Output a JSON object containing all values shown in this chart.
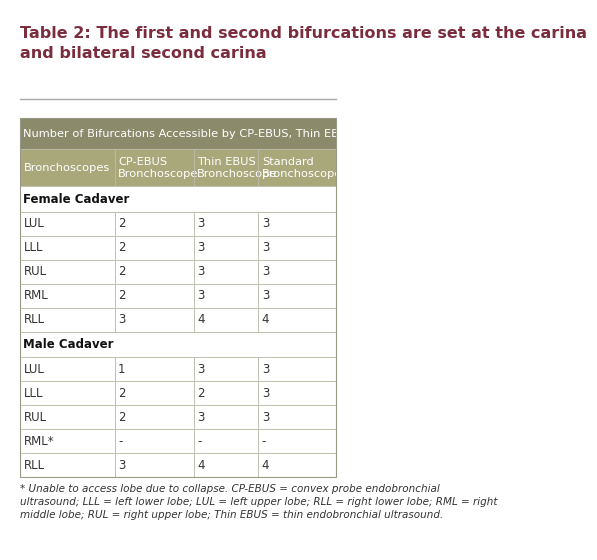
{
  "title": "Table 2: The first and second bifurcations are set at the carina\nand bilateral second carina",
  "title_color": "#7B2D3E",
  "title_fontsize": 11.5,
  "table_header_bg": "#8B8B6B",
  "table_header_text": "#FFFFFF",
  "table_subheader_bg": "#A8A87A",
  "table_subheader_text": "#FFFFFF",
  "cell_text_color": "#333333",
  "border_color": "#BBBBAA",
  "header_span": "Number of Bifurcations Accessible by CP-EBUS, Thin EBUS and Standard",
  "col_headers": [
    "Bronchoscopes",
    "CP-EBUS\nBronchoscope",
    "Thin EBUS\nBronchoscope",
    "Standard\nBronchoscope"
  ],
  "female_section": "Female Cadaver",
  "male_section": "Male Cadaver",
  "rows": [
    [
      "LUL",
      "2",
      "3",
      "3"
    ],
    [
      "LLL",
      "2",
      "3",
      "3"
    ],
    [
      "RUL",
      "2",
      "3",
      "3"
    ],
    [
      "RML",
      "2",
      "3",
      "3"
    ],
    [
      "RLL",
      "3",
      "4",
      "4"
    ],
    [
      "LUL",
      "1",
      "3",
      "3"
    ],
    [
      "LLL",
      "2",
      "2",
      "3"
    ],
    [
      "RUL",
      "2",
      "3",
      "3"
    ],
    [
      "RML*",
      "-",
      "-",
      "-"
    ],
    [
      "RLL",
      "3",
      "4",
      "4"
    ]
  ],
  "footnote": "* Unable to access lobe due to collapse. CP-EBUS = convex probe endobronchial\nultrasound; LLL = left lower lobe; LUL = left upper lobe; RLL = right lower lobe; RML = right\nmiddle lobe; RUL = right upper lobe; Thin EBUS = thin endobronchial ultrasound.",
  "footnote_fontsize": 7.5,
  "bg_color": "#FFFFFF",
  "rule_color": "#AAAAAA",
  "outer_border_color": "#999988"
}
